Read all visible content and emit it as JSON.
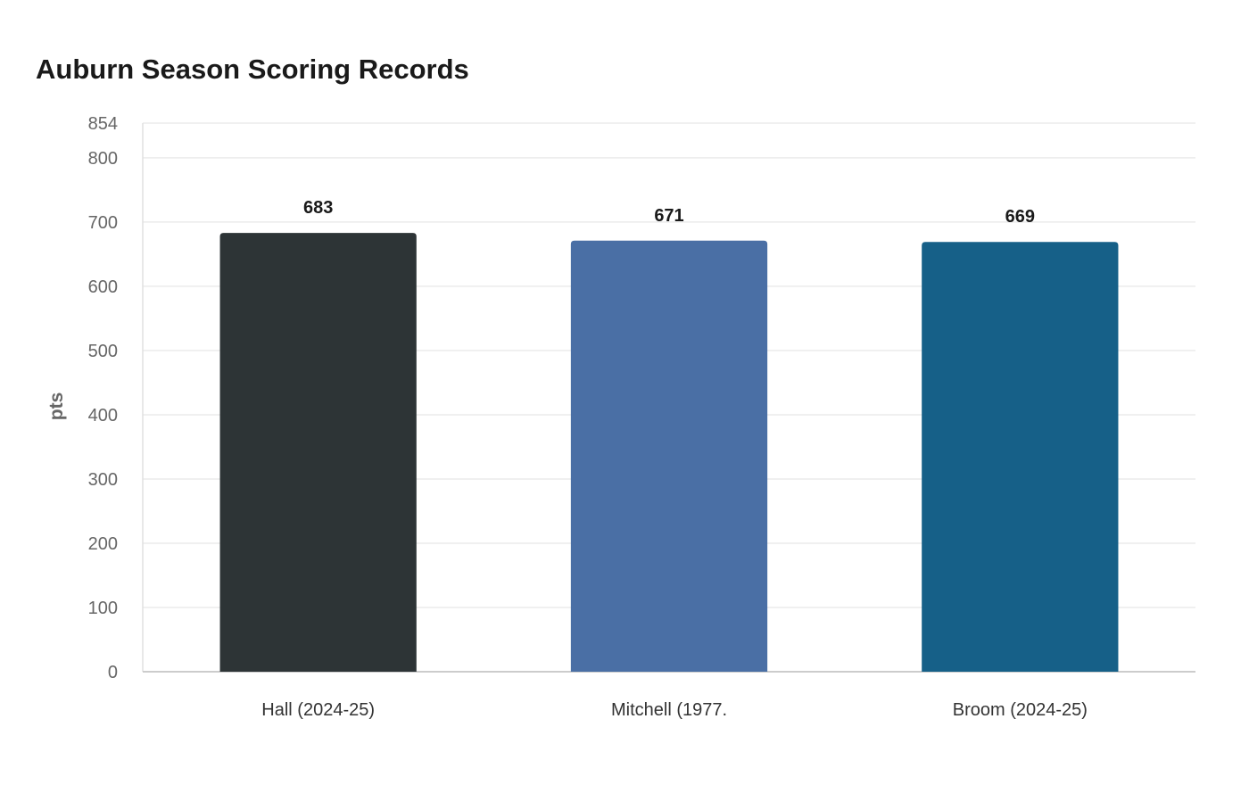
{
  "chart_data": {
    "type": "bar",
    "title": "Auburn Season Scoring Records",
    "xlabel": "",
    "ylabel": "pts",
    "categories": [
      "Hall (2024-25)",
      "Mitchell (1977.",
      "Broom (2024-25)"
    ],
    "values": [
      683,
      671,
      669
    ],
    "value_labels": [
      "683",
      "671",
      "669"
    ],
    "colors": [
      "#2d3436",
      "#4a6fa5",
      "#166088"
    ],
    "ylim": [
      0,
      854
    ],
    "yticks": [
      0,
      100,
      200,
      300,
      400,
      500,
      600,
      700,
      800,
      854
    ],
    "grid": true,
    "legend": "none"
  }
}
